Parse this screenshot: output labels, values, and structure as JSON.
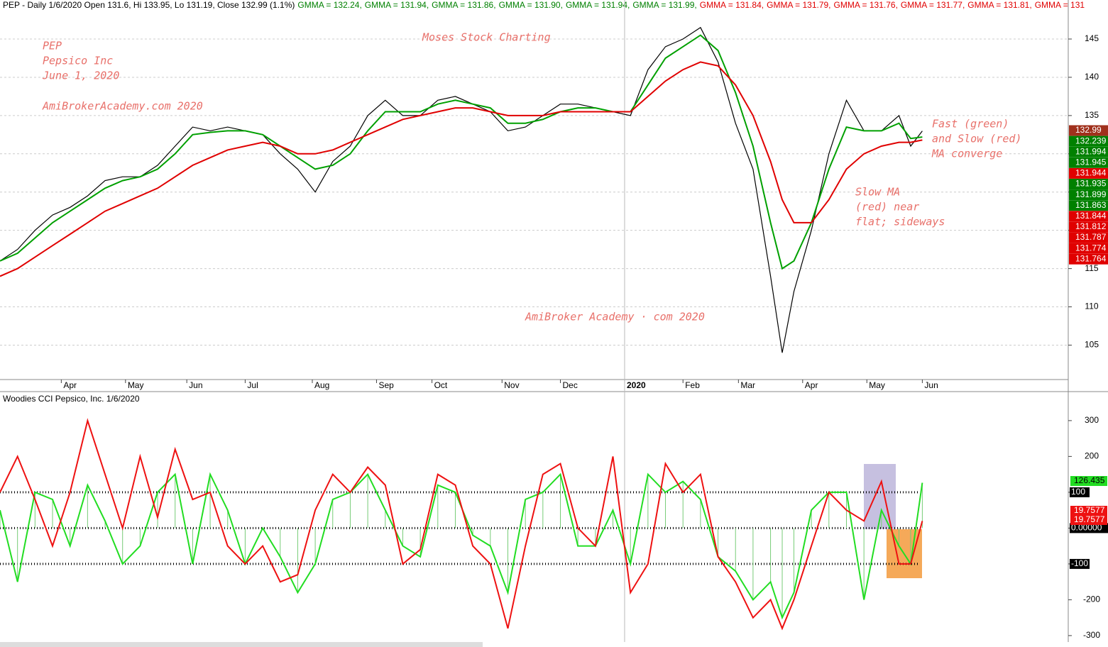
{
  "header": [
    {
      "text": "PEP - Daily 1/6/2020 Open 131.6, Hi 133.95, Lo 131.19, Close 132.99 (1.1%)",
      "color": "#000000"
    },
    {
      "text": "GMMA = 132.24,",
      "color": "#008000"
    },
    {
      "text": "GMMA = 131.94,",
      "color": "#008000"
    },
    {
      "text": "GMMA = 131.86,",
      "color": "#008000"
    },
    {
      "text": "GMMA = 131.90,",
      "color": "#008000"
    },
    {
      "text": "GMMA = 131.94,",
      "color": "#008000"
    },
    {
      "text": "GMMA = 131.99,",
      "color": "#008000"
    },
    {
      "text": "GMMA = 131.84,",
      "color": "#e00000"
    },
    {
      "text": "GMMA = 131.79,",
      "color": "#e00000"
    },
    {
      "text": "GMMA = 131.76,",
      "color": "#e00000"
    },
    {
      "text": "GMMA = 131.77,",
      "color": "#e00000"
    },
    {
      "text": "GMMA = 131.81,",
      "color": "#e00000"
    },
    {
      "text": "GMMA = 131",
      "color": "#e00000"
    }
  ],
  "chart_data": [
    {
      "type": "line",
      "annotations": [
        {
          "lines": [
            "PEP",
            "Pepsico Inc",
            "June 1, 2020"
          ]
        },
        {
          "lines": [
            "AmiBrokerAcademy.com  2020"
          ]
        },
        {
          "lines": [
            "Moses Stock Charting"
          ]
        },
        {
          "lines": [
            "AmiBroker Academy · com  2020"
          ]
        },
        {
          "lines": [
            "Fast (green)",
            "and Slow (red)",
            "MA converge"
          ]
        },
        {
          "lines": [
            "Slow MA",
            "(red) near",
            "flat; sideways"
          ]
        }
      ],
      "x": [
        0,
        6,
        12,
        18,
        24,
        30,
        36,
        42,
        48,
        54,
        60,
        66,
        72,
        78,
        84,
        90,
        96,
        102,
        108,
        114,
        120,
        126,
        132,
        138,
        144,
        150,
        156,
        162,
        168,
        174,
        180,
        186,
        192,
        198,
        204,
        210,
        216,
        222,
        228,
        234,
        240,
        246,
        252,
        258,
        264,
        268,
        272,
        278,
        284,
        290,
        296,
        302,
        308,
        312,
        316
      ],
      "series": [
        {
          "color": "#000000",
          "values": [
            116,
            117.5,
            120,
            122,
            123,
            124.5,
            126.5,
            127,
            127,
            128.5,
            131,
            133.5,
            133,
            133.5,
            133,
            132.5,
            130,
            128,
            125,
            129,
            131,
            135,
            137,
            135,
            135,
            137,
            137.5,
            136.5,
            135.5,
            133,
            133.5,
            135,
            136.5,
            136.5,
            136,
            135.5,
            135,
            141,
            144,
            145,
            146.5,
            142,
            134,
            128,
            114,
            104,
            112,
            120,
            130,
            137,
            133,
            133,
            135,
            131,
            132.99
          ]
        },
        {
          "color": "#00a000",
          "values": [
            116,
            117,
            119,
            121,
            122.5,
            124,
            125.5,
            126.5,
            127,
            128,
            130,
            132.5,
            132.8,
            133,
            133,
            132.5,
            131,
            129.5,
            128,
            128.5,
            130,
            133,
            135.5,
            135.5,
            135.5,
            136.5,
            137,
            136.5,
            136,
            134,
            134,
            134.5,
            135.5,
            136,
            136,
            135.5,
            135.5,
            139,
            142.5,
            144,
            145.5,
            143.5,
            138,
            131,
            121,
            115,
            116,
            121,
            128,
            133.5,
            133,
            133,
            134,
            132,
            132.2
          ]
        },
        {
          "color": "#e00000",
          "values": [
            114,
            115,
            116.5,
            118,
            119.5,
            121,
            122.5,
            123.5,
            124.5,
            125.5,
            127,
            128.5,
            129.5,
            130.5,
            131,
            131.5,
            131,
            130,
            130,
            130.5,
            131.5,
            132.5,
            133.5,
            134.5,
            135,
            135.5,
            136,
            136,
            135.5,
            135,
            135,
            135,
            135.5,
            135.5,
            135.5,
            135.5,
            135.5,
            137.5,
            139.5,
            141,
            142,
            141.5,
            139,
            135,
            129,
            124,
            121,
            121,
            124,
            128,
            130,
            131,
            131.5,
            131.5,
            131.8
          ]
        }
      ],
      "xlim": [
        0,
        366
      ],
      "xticks": [
        {
          "value": 21,
          "label": "Apr"
        },
        {
          "value": 43,
          "label": "May"
        },
        {
          "value": 64,
          "label": "Jun"
        },
        {
          "value": 84,
          "label": "Jul"
        },
        {
          "value": 107,
          "label": "Aug"
        },
        {
          "value": 129,
          "label": "Sep"
        },
        {
          "value": 148,
          "label": "Oct"
        },
        {
          "value": 172,
          "label": "Nov"
        },
        {
          "value": 192,
          "label": "Dec"
        },
        {
          "value": 214,
          "label": "2020"
        },
        {
          "value": 234,
          "label": "Feb"
        },
        {
          "value": 253,
          "label": "Mar"
        },
        {
          "value": 275,
          "label": "Apr"
        },
        {
          "value": 297,
          "label": "May"
        },
        {
          "value": 316,
          "label": "Jun"
        }
      ],
      "ylim": [
        100.5,
        150.1
      ],
      "yticks": [
        105,
        110,
        115,
        120,
        125,
        130,
        135,
        140,
        145
      ],
      "grid": true,
      "price_labels": [
        {
          "value": 132.99,
          "color": "#a0301c"
        },
        {
          "value": 132.239,
          "color": "#008000"
        },
        {
          "value": 131.994,
          "color": "#008000"
        },
        {
          "value": 131.945,
          "color": "#008000"
        },
        {
          "value": 131.944,
          "color": "#e00000"
        },
        {
          "value": 131.935,
          "color": "#008000"
        },
        {
          "value": 131.899,
          "color": "#008000"
        },
        {
          "value": 131.863,
          "color": "#008000"
        },
        {
          "value": 131.844,
          "color": "#e00000"
        },
        {
          "value": 131.812,
          "color": "#e00000"
        },
        {
          "value": 131.787,
          "color": "#e00000"
        },
        {
          "value": 131.774,
          "color": "#e00000"
        },
        {
          "value": 131.764,
          "color": "#e00000"
        }
      ]
    },
    {
      "type": "line",
      "title": "Woodies CCI  Pepsico, Inc. 1/6/2020",
      "x": [
        0,
        6,
        12,
        18,
        24,
        30,
        36,
        42,
        48,
        54,
        60,
        66,
        72,
        78,
        84,
        90,
        96,
        102,
        108,
        114,
        120,
        126,
        132,
        138,
        144,
        150,
        156,
        162,
        168,
        174,
        180,
        186,
        192,
        198,
        204,
        210,
        216,
        222,
        228,
        234,
        240,
        246,
        252,
        258,
        264,
        268,
        272,
        278,
        284,
        290,
        296,
        302,
        308,
        312,
        316
      ],
      "series": [
        {
          "color": "#22dd22",
          "values": [
            50,
            -150,
            100,
            80,
            -50,
            120,
            20,
            -100,
            -50,
            100,
            150,
            -100,
            150,
            50,
            -100,
            0,
            -80,
            -180,
            -100,
            80,
            100,
            150,
            50,
            -50,
            -80,
            120,
            100,
            -20,
            -50,
            -180,
            80,
            100,
            150,
            -50,
            -50,
            50,
            -100,
            150,
            100,
            130,
            80,
            -80,
            -120,
            -200,
            -150,
            -250,
            -180,
            50,
            100,
            100,
            -200,
            50,
            -50,
            -100,
            126.435
          ]
        },
        {
          "color": "#ee1111",
          "values": [
            100,
            200,
            80,
            -50,
            100,
            300,
            150,
            0,
            200,
            30,
            220,
            80,
            100,
            -50,
            -100,
            -50,
            -150,
            -130,
            50,
            150,
            100,
            170,
            120,
            -100,
            -60,
            150,
            120,
            -50,
            -100,
            -280,
            -50,
            150,
            180,
            0,
            -50,
            200,
            -180,
            -100,
            180,
            100,
            150,
            -80,
            -150,
            -250,
            -200,
            -280,
            -200,
            -50,
            100,
            50,
            20,
            130,
            -100,
            -100,
            19.7577
          ]
        }
      ],
      "xlim": [
        0,
        366
      ],
      "ylim": [
        -318,
        375
      ],
      "yticks": [
        -300,
        -200,
        -100,
        {
          "value": 0,
          "label": "0.00000"
        },
        100,
        200,
        300
      ],
      "levels": [
        -100,
        0,
        100
      ]
    }
  ]
}
